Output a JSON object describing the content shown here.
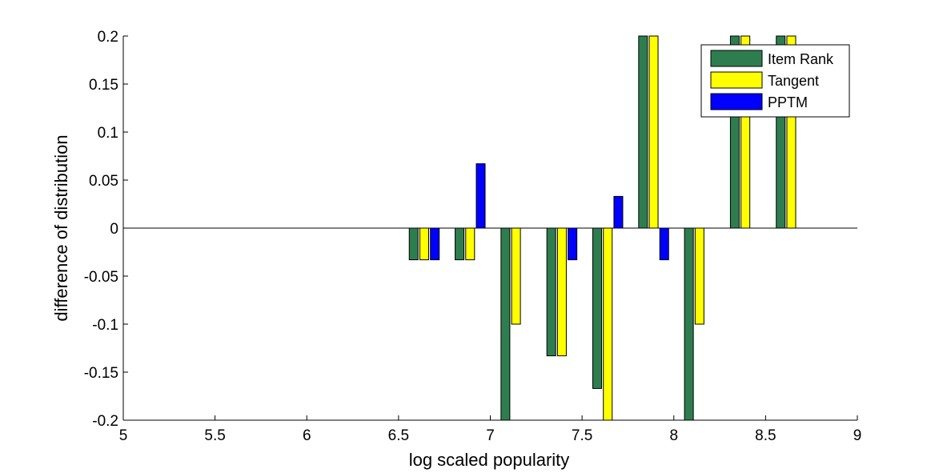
{
  "chart_data": {
    "type": "bar",
    "xlabel": "log scaled popularity",
    "ylabel": "difference of distribution",
    "xlim": [
      5,
      9
    ],
    "ylim": [
      -0.2,
      0.2
    ],
    "xticks": [
      "5",
      "5.5",
      "6",
      "6.5",
      "7",
      "7.5",
      "8",
      "8.5",
      "9"
    ],
    "yticks": [
      "-0.2",
      "-0.15",
      "-0.1",
      "-0.05",
      "0",
      "0.05",
      "0.1",
      "0.15",
      "0.2"
    ],
    "grid": false,
    "legend_position": "top-right",
    "x": [
      6.64,
      6.89,
      7.14,
      7.39,
      7.64,
      7.89,
      8.14,
      8.39,
      8.64
    ],
    "series": [
      {
        "name": "Item Rank",
        "color": "#2e7d4f",
        "values": [
          -0.033,
          -0.033,
          -0.2,
          -0.133,
          -0.167,
          0.2,
          -0.2,
          0.2,
          0.2
        ]
      },
      {
        "name": "Tangent",
        "color": "#ffff00",
        "values": [
          -0.033,
          -0.033,
          -0.1,
          -0.133,
          -0.2,
          0.2,
          -0.1,
          0.2,
          0.2
        ]
      },
      {
        "name": "PPTM",
        "color": "#0000ff",
        "values": [
          -0.033,
          0.067,
          0,
          -0.033,
          0.033,
          -0.033,
          0,
          0,
          0
        ]
      }
    ]
  }
}
